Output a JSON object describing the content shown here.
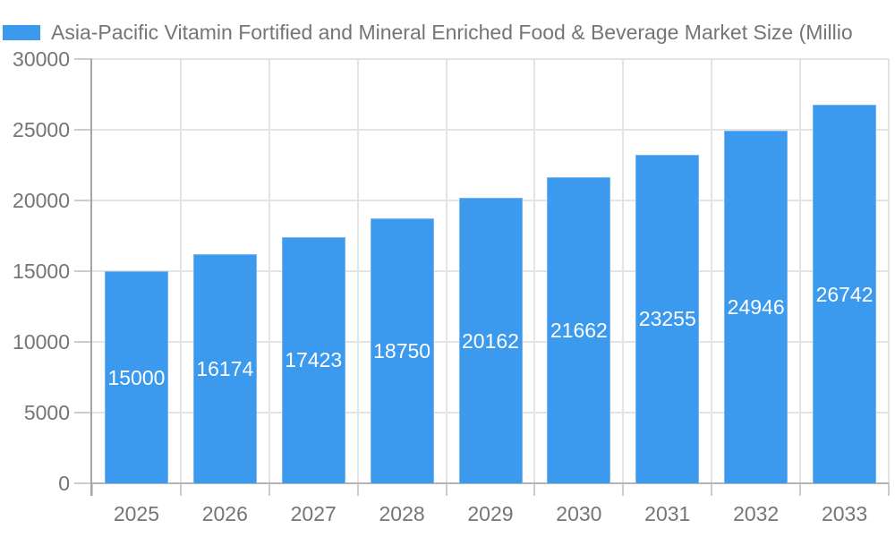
{
  "chart_data": {
    "type": "bar",
    "title": "Asia-Pacific Vitamin Fortified and Mineral Enriched Food & Beverage Market Size (Millio",
    "title_truncated": true,
    "categories": [
      "2025",
      "2026",
      "2027",
      "2028",
      "2029",
      "2030",
      "2031",
      "2032",
      "2033"
    ],
    "values": [
      15000,
      16174,
      17423,
      18750,
      20162,
      21662,
      23255,
      24946,
      26742
    ],
    "value_labels": [
      "15000",
      "16174",
      "17423",
      "18750",
      "20162",
      "21662",
      "23255",
      "24946",
      "26742"
    ],
    "xlabel": "",
    "ylabel": "",
    "ylim": [
      0,
      30000
    ],
    "yticks": [
      0,
      5000,
      10000,
      15000,
      20000,
      25000,
      30000
    ],
    "ytick_labels": [
      "0",
      "5000",
      "10000",
      "15000",
      "20000",
      "25000",
      "30000"
    ],
    "grid": "on",
    "legend_position": "top-left",
    "value_label_position": "center-of-bar",
    "colors": {
      "bar": "#3b99ee",
      "grid": "#e3e3e3",
      "axis_line": "#a6a6a6",
      "baseline": "#b3b3b3",
      "tick": "#cccccc",
      "axis_text": "#757575",
      "title_text": "#757575",
      "value_text": "#ffffff"
    }
  }
}
